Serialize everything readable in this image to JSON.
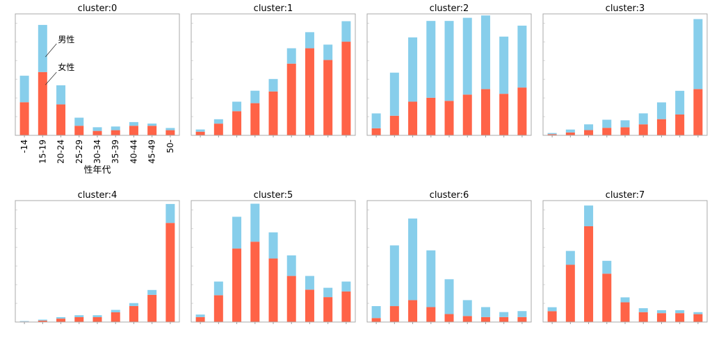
{
  "chart_data": {
    "type": "bar",
    "stacked": true,
    "categories": [
      "-14",
      "15-19",
      "20-24",
      "25-29",
      "30-34",
      "35-39",
      "40-44",
      "45-49",
      "50-"
    ],
    "xlabel": "性年代",
    "series_colors": {
      "female": "#FF6347",
      "male": "#87CEEB"
    },
    "annotations": {
      "male_label": "男性",
      "female_label": "女性"
    },
    "panels": [
      {
        "title": "cluster:0",
        "female": [
          45,
          86,
          42,
          13,
          6,
          7,
          13,
          13,
          7
        ],
        "male": [
          36,
          64,
          26,
          11,
          5,
          5,
          5,
          3,
          3
        ],
        "ylim": [
          0,
          165
        ]
      },
      {
        "title": "cluster:1",
        "female": [
          5,
          16,
          33,
          44,
          60,
          98,
          119,
          103,
          128
        ],
        "male": [
          3,
          6,
          13,
          17,
          17,
          21,
          22,
          21,
          28
        ],
        "ylim": [
          0,
          166
        ]
      },
      {
        "title": "cluster:2",
        "female": [
          9,
          25,
          43,
          48,
          44,
          52,
          59,
          53,
          61
        ],
        "male": [
          19,
          55,
          82,
          98,
          102,
          98,
          94,
          73,
          79
        ],
        "ylim": [
          0,
          155
        ]
      },
      {
        "title": "cluster:3",
        "female": [
          2,
          5,
          9,
          13,
          14,
          19,
          28,
          36,
          80
        ],
        "male": [
          2,
          5,
          10,
          14,
          12,
          19,
          29,
          41,
          121
        ],
        "ylim": [
          0,
          210
        ]
      },
      {
        "title": "cluster:4",
        "female": [
          1,
          3,
          7,
          10,
          10,
          20,
          33,
          56,
          204
        ],
        "male": [
          1,
          2,
          3,
          4,
          4,
          5,
          6,
          10,
          39
        ],
        "ylim": [
          0,
          250
        ]
      },
      {
        "title": "cluster:5",
        "female": [
          8,
          43,
          118,
          129,
          102,
          74,
          52,
          40,
          49
        ],
        "male": [
          4,
          22,
          51,
          61,
          42,
          33,
          22,
          15,
          16
        ],
        "ylim": [
          0,
          195
        ]
      },
      {
        "title": "cluster:6",
        "female": [
          4,
          16,
          22,
          15,
          8,
          6,
          5,
          5,
          5
        ],
        "male": [
          12,
          61,
          82,
          57,
          35,
          16,
          10,
          5,
          6
        ],
        "ylim": [
          0,
          122
        ]
      },
      {
        "title": "cluster:7",
        "female": [
          11,
          58,
          97,
          49,
          20,
          10,
          9,
          9,
          8
        ],
        "male": [
          4,
          14,
          21,
          13,
          5,
          4,
          3,
          3,
          2
        ],
        "ylim": [
          0,
          123
        ]
      }
    ]
  }
}
